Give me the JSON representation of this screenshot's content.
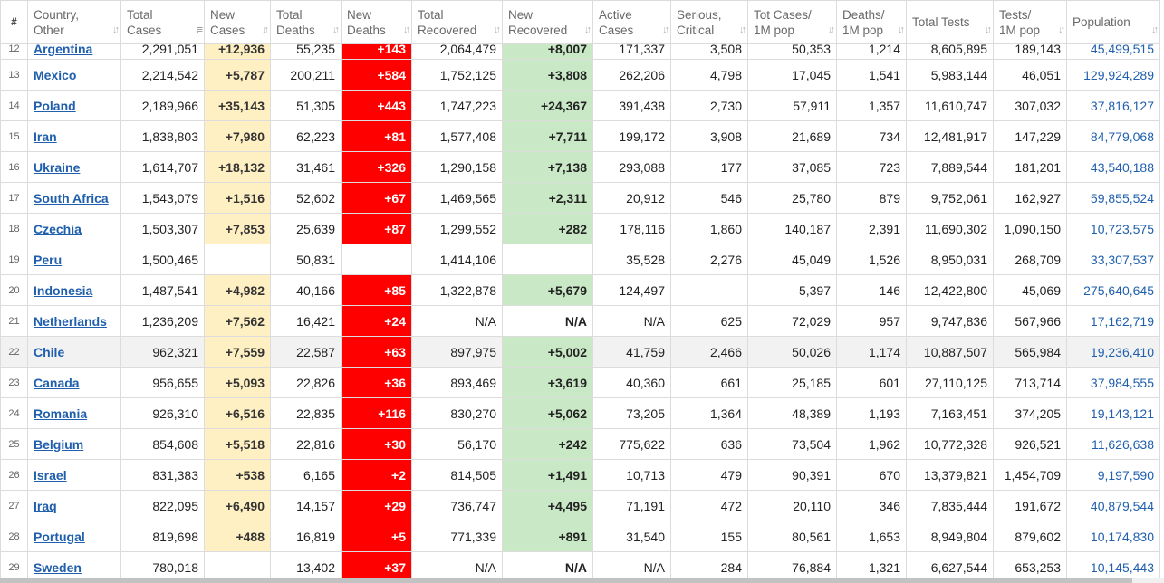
{
  "header": {
    "idx": "#",
    "country": "Country, Other",
    "total_cases": "Total Cases",
    "new_cases": "New Cases",
    "total_deaths": "Total Deaths",
    "new_deaths": "New Deaths",
    "total_recovered": "Total Recovered",
    "new_recovered": "New Recovered",
    "active_cases": "Active Cases",
    "serious": "Serious, Critical",
    "cases_per_m": "Tot Cases/ 1M pop",
    "deaths_per_m": "Deaths/ 1M pop",
    "total_tests": "Total Tests",
    "tests_per_m": "Tests/ 1M pop",
    "population": "Population",
    "sort_icon": "sort-arrows-icon"
  },
  "rows": [
    {
      "n": "12",
      "country": "Argentina",
      "total_cases": "2,291,051",
      "new_cases": "+12,936",
      "total_deaths": "55,235",
      "new_deaths": "+143",
      "total_recovered": "2,064,479",
      "new_recovered": "+8,007",
      "active": "171,337",
      "serious": "3,508",
      "cases_m": "50,353",
      "deaths_m": "1,214",
      "tests": "8,605,895",
      "tests_m": "189,143",
      "population": "45,499,515"
    },
    {
      "n": "13",
      "country": "Mexico",
      "total_cases": "2,214,542",
      "new_cases": "+5,787",
      "total_deaths": "200,211",
      "new_deaths": "+584",
      "total_recovered": "1,752,125",
      "new_recovered": "+3,808",
      "active": "262,206",
      "serious": "4,798",
      "cases_m": "17,045",
      "deaths_m": "1,541",
      "tests": "5,983,144",
      "tests_m": "46,051",
      "population": "129,924,289"
    },
    {
      "n": "14",
      "country": "Poland",
      "total_cases": "2,189,966",
      "new_cases": "+35,143",
      "total_deaths": "51,305",
      "new_deaths": "+443",
      "total_recovered": "1,747,223",
      "new_recovered": "+24,367",
      "active": "391,438",
      "serious": "2,730",
      "cases_m": "57,911",
      "deaths_m": "1,357",
      "tests": "11,610,747",
      "tests_m": "307,032",
      "population": "37,816,127"
    },
    {
      "n": "15",
      "country": "Iran",
      "total_cases": "1,838,803",
      "new_cases": "+7,980",
      "total_deaths": "62,223",
      "new_deaths": "+81",
      "total_recovered": "1,577,408",
      "new_recovered": "+7,711",
      "active": "199,172",
      "serious": "3,908",
      "cases_m": "21,689",
      "deaths_m": "734",
      "tests": "12,481,917",
      "tests_m": "147,229",
      "population": "84,779,068"
    },
    {
      "n": "16",
      "country": "Ukraine",
      "total_cases": "1,614,707",
      "new_cases": "+18,132",
      "total_deaths": "31,461",
      "new_deaths": "+326",
      "total_recovered": "1,290,158",
      "new_recovered": "+7,138",
      "active": "293,088",
      "serious": "177",
      "cases_m": "37,085",
      "deaths_m": "723",
      "tests": "7,889,544",
      "tests_m": "181,201",
      "population": "43,540,188"
    },
    {
      "n": "17",
      "country": "South Africa",
      "total_cases": "1,543,079",
      "new_cases": "+1,516",
      "total_deaths": "52,602",
      "new_deaths": "+67",
      "total_recovered": "1,469,565",
      "new_recovered": "+2,311",
      "active": "20,912",
      "serious": "546",
      "cases_m": "25,780",
      "deaths_m": "879",
      "tests": "9,752,061",
      "tests_m": "162,927",
      "population": "59,855,524"
    },
    {
      "n": "18",
      "country": "Czechia",
      "total_cases": "1,503,307",
      "new_cases": "+7,853",
      "total_deaths": "25,639",
      "new_deaths": "+87",
      "total_recovered": "1,299,552",
      "new_recovered": "+282",
      "active": "178,116",
      "serious": "1,860",
      "cases_m": "140,187",
      "deaths_m": "2,391",
      "tests": "11,690,302",
      "tests_m": "1,090,150",
      "population": "10,723,575"
    },
    {
      "n": "19",
      "country": "Peru",
      "total_cases": "1,500,465",
      "new_cases": "",
      "total_deaths": "50,831",
      "new_deaths": "",
      "total_recovered": "1,414,106",
      "new_recovered": "",
      "active": "35,528",
      "serious": "2,276",
      "cases_m": "45,049",
      "deaths_m": "1,526",
      "tests": "8,950,031",
      "tests_m": "268,709",
      "population": "33,307,537"
    },
    {
      "n": "20",
      "country": "Indonesia",
      "total_cases": "1,487,541",
      "new_cases": "+4,982",
      "total_deaths": "40,166",
      "new_deaths": "+85",
      "total_recovered": "1,322,878",
      "new_recovered": "+5,679",
      "active": "124,497",
      "serious": "",
      "cases_m": "5,397",
      "deaths_m": "146",
      "tests": "12,422,800",
      "tests_m": "45,069",
      "population": "275,640,645"
    },
    {
      "n": "21",
      "country": "Netherlands",
      "total_cases": "1,236,209",
      "new_cases": "+7,562",
      "total_deaths": "16,421",
      "new_deaths": "+24",
      "total_recovered": "N/A",
      "new_recovered": "N/A",
      "active": "N/A",
      "serious": "625",
      "cases_m": "72,029",
      "deaths_m": "957",
      "tests": "9,747,836",
      "tests_m": "567,966",
      "population": "17,162,719"
    },
    {
      "n": "22",
      "country": "Chile",
      "total_cases": "962,321",
      "new_cases": "+7,559",
      "total_deaths": "22,587",
      "new_deaths": "+63",
      "total_recovered": "897,975",
      "new_recovered": "+5,002",
      "active": "41,759",
      "serious": "2,466",
      "cases_m": "50,026",
      "deaths_m": "1,174",
      "tests": "10,887,507",
      "tests_m": "565,984",
      "population": "19,236,410"
    },
    {
      "n": "23",
      "country": "Canada",
      "total_cases": "956,655",
      "new_cases": "+5,093",
      "total_deaths": "22,826",
      "new_deaths": "+36",
      "total_recovered": "893,469",
      "new_recovered": "+3,619",
      "active": "40,360",
      "serious": "661",
      "cases_m": "25,185",
      "deaths_m": "601",
      "tests": "27,110,125",
      "tests_m": "713,714",
      "population": "37,984,555"
    },
    {
      "n": "24",
      "country": "Romania",
      "total_cases": "926,310",
      "new_cases": "+6,516",
      "total_deaths": "22,835",
      "new_deaths": "+116",
      "total_recovered": "830,270",
      "new_recovered": "+5,062",
      "active": "73,205",
      "serious": "1,364",
      "cases_m": "48,389",
      "deaths_m": "1,193",
      "tests": "7,163,451",
      "tests_m": "374,205",
      "population": "19,143,121"
    },
    {
      "n": "25",
      "country": "Belgium",
      "total_cases": "854,608",
      "new_cases": "+5,518",
      "total_deaths": "22,816",
      "new_deaths": "+30",
      "total_recovered": "56,170",
      "new_recovered": "+242",
      "active": "775,622",
      "serious": "636",
      "cases_m": "73,504",
      "deaths_m": "1,962",
      "tests": "10,772,328",
      "tests_m": "926,521",
      "population": "11,626,638"
    },
    {
      "n": "26",
      "country": "Israel",
      "total_cases": "831,383",
      "new_cases": "+538",
      "total_deaths": "6,165",
      "new_deaths": "+2",
      "total_recovered": "814,505",
      "new_recovered": "+1,491",
      "active": "10,713",
      "serious": "479",
      "cases_m": "90,391",
      "deaths_m": "670",
      "tests": "13,379,821",
      "tests_m": "1,454,709",
      "population": "9,197,590"
    },
    {
      "n": "27",
      "country": "Iraq",
      "total_cases": "822,095",
      "new_cases": "+6,490",
      "total_deaths": "14,157",
      "new_deaths": "+29",
      "total_recovered": "736,747",
      "new_recovered": "+4,495",
      "active": "71,191",
      "serious": "472",
      "cases_m": "20,110",
      "deaths_m": "346",
      "tests": "7,835,444",
      "tests_m": "191,672",
      "population": "40,879,544"
    },
    {
      "n": "28",
      "country": "Portugal",
      "total_cases": "819,698",
      "new_cases": "+488",
      "total_deaths": "16,819",
      "new_deaths": "+5",
      "total_recovered": "771,339",
      "new_recovered": "+891",
      "active": "31,540",
      "serious": "155",
      "cases_m": "80,561",
      "deaths_m": "1,653",
      "tests": "8,949,804",
      "tests_m": "879,602",
      "population": "10,174,830"
    },
    {
      "n": "29",
      "country": "Sweden",
      "total_cases": "780,018",
      "new_cases": "",
      "total_deaths": "13,402",
      "new_deaths": "+37",
      "total_recovered": "N/A",
      "new_recovered": "N/A",
      "active": "N/A",
      "serious": "284",
      "cases_m": "76,884",
      "deaths_m": "1,321",
      "tests": "6,627,544",
      "tests_m": "653,253",
      "population": "10,145,443"
    }
  ],
  "highlighted_row": "22",
  "active_sort_column": "new_cases"
}
